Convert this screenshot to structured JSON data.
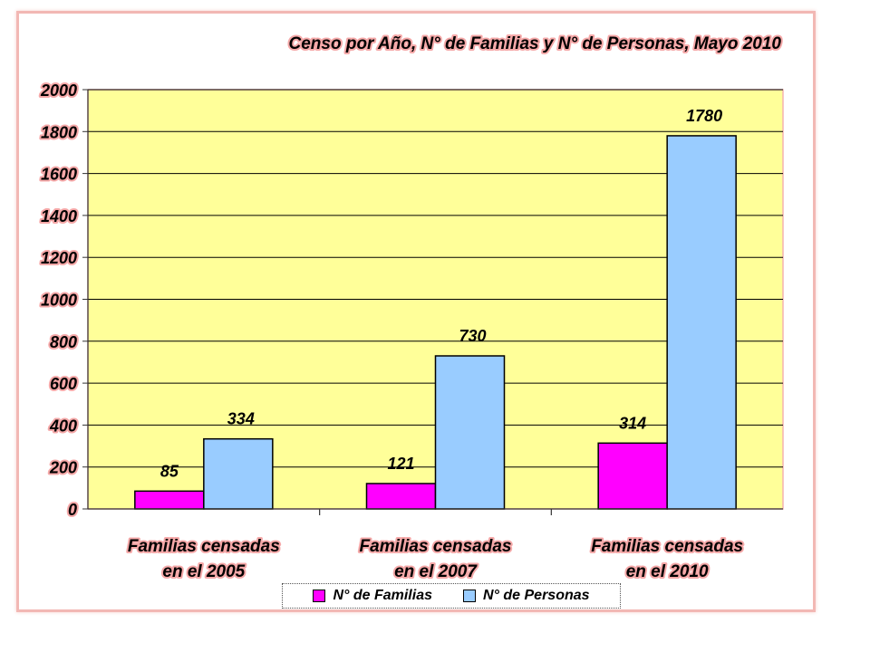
{
  "chart_data": {
    "type": "bar",
    "title": "Censo por Año, N° de Familias y N° de Personas, Mayo 2010",
    "categories": [
      [
        "Familias censadas",
        "en el 2005"
      ],
      [
        "Familias censadas",
        "en el 2007"
      ],
      [
        "Familias censadas",
        "en el 2010"
      ]
    ],
    "series": [
      {
        "name": "N° de Familias",
        "values": [
          85,
          121,
          314
        ],
        "color": "#ff00ff"
      },
      {
        "name": "N° de Personas",
        "values": [
          334,
          730,
          1780
        ],
        "color": "#99ccff"
      }
    ],
    "ylim": [
      0,
      2000
    ],
    "yticks": [
      0,
      200,
      400,
      600,
      800,
      1000,
      1200,
      1400,
      1600,
      1800,
      2000
    ],
    "grid": true,
    "legend_position": "bottom",
    "plot_background": "#ffff99"
  }
}
